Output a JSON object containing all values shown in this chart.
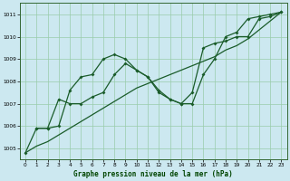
{
  "title": "Graphe pression niveau de la mer (hPa)",
  "bg_color": "#cce8f0",
  "grid_color": "#99ccaa",
  "line_color": "#1a5c2a",
  "xlim": [
    -0.5,
    23.5
  ],
  "ylim": [
    1004.5,
    1011.5
  ],
  "yticks": [
    1005,
    1006,
    1007,
    1008,
    1009,
    1010,
    1011
  ],
  "xticks": [
    0,
    1,
    2,
    3,
    4,
    5,
    6,
    7,
    8,
    9,
    10,
    11,
    12,
    13,
    14,
    15,
    16,
    17,
    18,
    19,
    20,
    21,
    22,
    23
  ],
  "series_wavy": {
    "x": [
      0,
      1,
      2,
      3,
      4,
      5,
      6,
      7,
      8,
      9,
      10,
      11,
      12,
      13,
      14,
      15,
      16,
      17,
      18,
      19,
      20,
      21,
      22,
      23
    ],
    "y": [
      1004.8,
      1005.9,
      1005.9,
      1006.0,
      1007.6,
      1008.2,
      1008.3,
      1009.0,
      1009.2,
      1009.0,
      1008.5,
      1008.2,
      1007.5,
      1007.2,
      1007.0,
      1007.0,
      1008.3,
      1009.0,
      1010.0,
      1010.2,
      1010.8,
      1010.9,
      1011.0,
      1011.1
    ]
  },
  "series_straight": {
    "x": [
      0,
      1,
      2,
      3,
      4,
      5,
      6,
      7,
      8,
      9,
      10,
      11,
      12,
      13,
      14,
      15,
      16,
      17,
      18,
      19,
      20,
      21,
      22,
      23
    ],
    "y": [
      1004.8,
      1005.1,
      1005.3,
      1005.6,
      1005.9,
      1006.2,
      1006.5,
      1006.8,
      1007.1,
      1007.4,
      1007.7,
      1007.9,
      1008.1,
      1008.3,
      1008.5,
      1008.7,
      1008.9,
      1009.1,
      1009.4,
      1009.6,
      1009.9,
      1010.3,
      1010.7,
      1011.1
    ]
  },
  "series_markers": {
    "x": [
      1,
      2,
      3,
      4,
      5,
      6,
      7,
      8,
      9,
      10,
      11,
      12,
      13,
      14,
      15,
      16,
      17,
      18,
      19,
      20,
      21,
      22,
      23
    ],
    "y": [
      1005.9,
      1005.9,
      1007.2,
      1007.0,
      1007.0,
      1007.3,
      1007.5,
      1008.3,
      1008.8,
      1008.5,
      1008.2,
      1007.6,
      1007.2,
      1007.0,
      1007.5,
      1009.5,
      1009.7,
      1009.8,
      1010.0,
      1010.0,
      1010.8,
      1010.9,
      1011.1
    ]
  }
}
